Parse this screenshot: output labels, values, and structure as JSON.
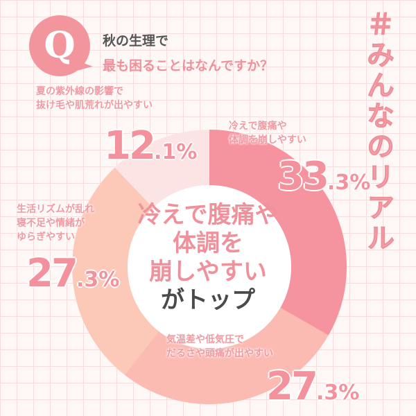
{
  "header": {
    "q_icon": "Q",
    "question_line1": "秋の生理で",
    "question_line2": "最も困ることはなんですか？"
  },
  "hashtag": "＃みんなのリアル",
  "chart_data": {
    "type": "pie",
    "donut": true,
    "title": "秋の生理で最も困ることはなんですか？",
    "unit": "%",
    "slices": [
      {
        "label": "冷えで腹痛や体調を崩しやすい",
        "label_lines": [
          "冷えで腹痛や",
          "体調を崩しやすい"
        ],
        "value": 33.3,
        "int": "33",
        "dec": ".3%",
        "color": "#f5939f"
      },
      {
        "label": "気温差や低気圧でだるさや頭痛が出やすい",
        "label_lines": [
          "気温差や低気圧で",
          "だるさや頭痛が出やすい"
        ],
        "value": 27.3,
        "int": "27",
        "dec": ".3%",
        "color": "#fbbab2"
      },
      {
        "label": "生活リズムが乱れ寝不足や情緒がゆらぎやすい",
        "label_lines": [
          "生活リズムが乱れ",
          "寝不足や情緒が",
          "ゆらぎやすい"
        ],
        "value": 27.3,
        "int": "27",
        "dec": ".3%",
        "color": "#fcc8b8"
      },
      {
        "label": "夏の紫外線の影響で抜け毛や肌荒れが出やすい",
        "label_lines": [
          "夏の紫外線の影響で",
          "抜け毛や肌荒れが出やすい"
        ],
        "value": 12.1,
        "int": "12",
        "dec": ".1%",
        "color": "#fde4e4"
      }
    ],
    "start": "top",
    "direction": "clockwise"
  },
  "center": {
    "line1": "冷えで腹痛や",
    "line2": "体調を",
    "line3": "崩しやすい",
    "line4": "がトップ"
  }
}
